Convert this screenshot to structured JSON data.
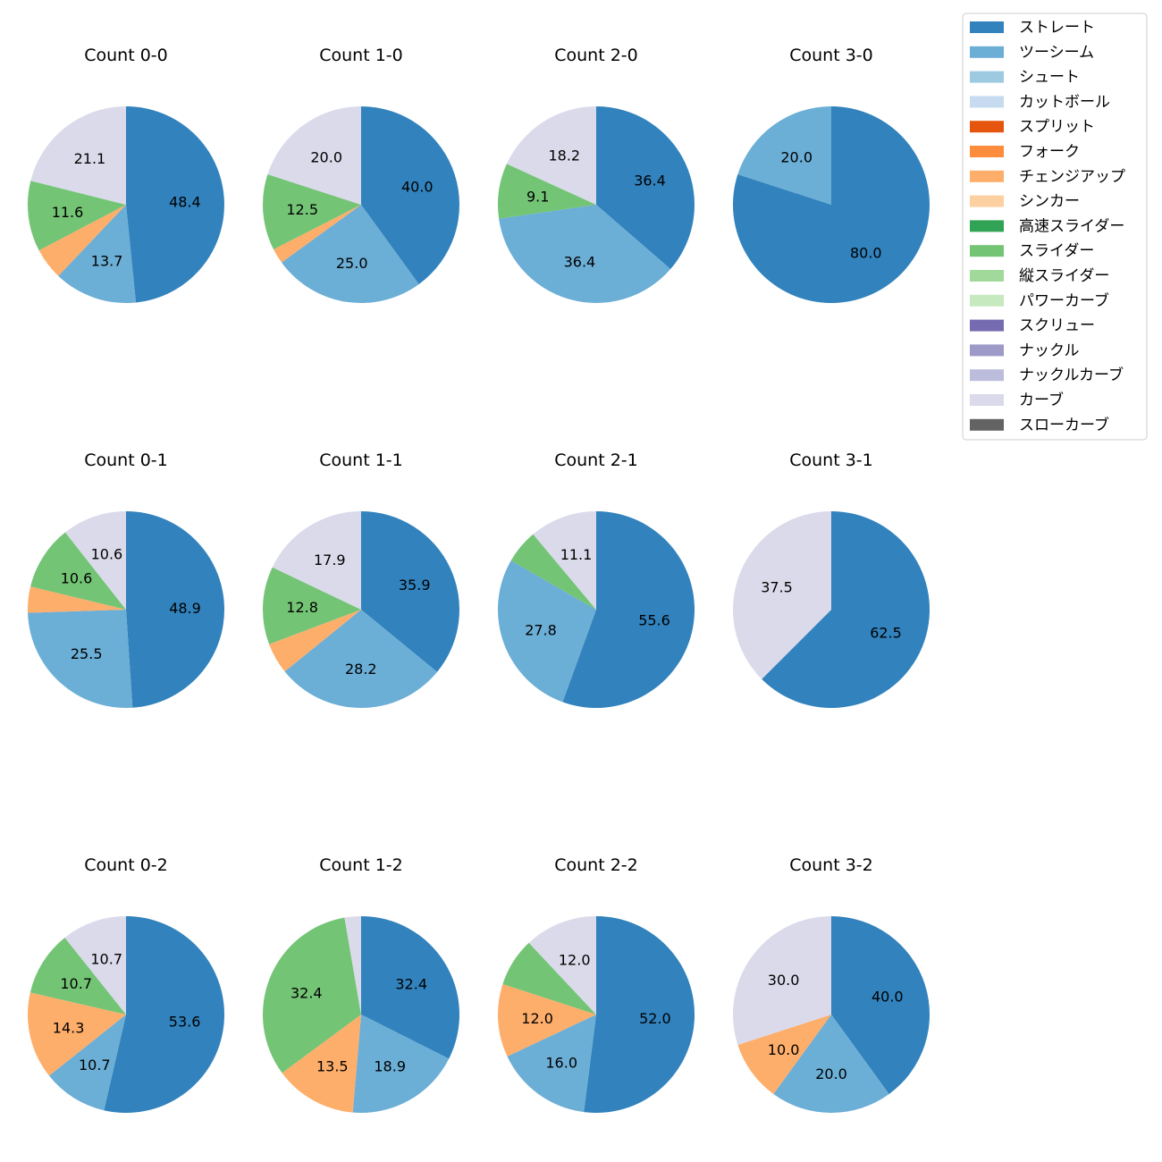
{
  "legend": {
    "placement": "top-right",
    "items": [
      {
        "name": "ストレート",
        "color": "#3182bd"
      },
      {
        "name": "ツーシーム",
        "color": "#6baed6"
      },
      {
        "name": "シュート",
        "color": "#9ecae1"
      },
      {
        "name": "カットボール",
        "color": "#c6dbef"
      },
      {
        "name": "スプリット",
        "color": "#e6550d"
      },
      {
        "name": "フォーク",
        "color": "#fd8d3c"
      },
      {
        "name": "チェンジアップ",
        "color": "#fdae6b"
      },
      {
        "name": "シンカー",
        "color": "#fdd0a2"
      },
      {
        "name": "高速スライダー",
        "color": "#31a354"
      },
      {
        "name": "スライダー",
        "color": "#74c476"
      },
      {
        "name": "縦スライダー",
        "color": "#a1d99b"
      },
      {
        "name": "パワーカーブ",
        "color": "#c7e9c0"
      },
      {
        "name": "スクリュー",
        "color": "#756bb1"
      },
      {
        "name": "ナックル",
        "color": "#9e9ac8"
      },
      {
        "name": "ナックルカーブ",
        "color": "#bcbddc"
      },
      {
        "name": "カーブ",
        "color": "#dadaeb"
      },
      {
        "name": "スローカーブ",
        "color": "#636363"
      }
    ]
  },
  "chart_data": [
    {
      "type": "pie",
      "title": "Count 0-0",
      "slices": [
        {
          "category": "ストレート",
          "value": 48.4,
          "label": "48.4"
        },
        {
          "category": "ツーシーム",
          "value": 13.7,
          "label": "13.7"
        },
        {
          "category": "チェンジアップ",
          "value": 5.2,
          "label": ""
        },
        {
          "category": "スライダー",
          "value": 11.6,
          "label": "11.6"
        },
        {
          "category": "カーブ",
          "value": 21.1,
          "label": "21.1"
        }
      ]
    },
    {
      "type": "pie",
      "title": "Count 1-0",
      "slices": [
        {
          "category": "ストレート",
          "value": 40.0,
          "label": "40.0"
        },
        {
          "category": "ツーシーム",
          "value": 25.0,
          "label": "25.0"
        },
        {
          "category": "チェンジアップ",
          "value": 2.5,
          "label": ""
        },
        {
          "category": "スライダー",
          "value": 12.5,
          "label": "12.5"
        },
        {
          "category": "カーブ",
          "value": 20.0,
          "label": "20.0"
        }
      ]
    },
    {
      "type": "pie",
      "title": "Count 2-0",
      "slices": [
        {
          "category": "ストレート",
          "value": 36.4,
          "label": "36.4"
        },
        {
          "category": "ツーシーム",
          "value": 36.4,
          "label": "36.4"
        },
        {
          "category": "スライダー",
          "value": 9.1,
          "label": "9.1"
        },
        {
          "category": "カーブ",
          "value": 18.2,
          "label": "18.2"
        }
      ]
    },
    {
      "type": "pie",
      "title": "Count 3-0",
      "slices": [
        {
          "category": "ストレート",
          "value": 80.0,
          "label": "80.0"
        },
        {
          "category": "ツーシーム",
          "value": 20.0,
          "label": "20.0"
        }
      ]
    },
    {
      "type": "pie",
      "title": "Count 0-1",
      "slices": [
        {
          "category": "ストレート",
          "value": 48.9,
          "label": "48.9"
        },
        {
          "category": "ツーシーム",
          "value": 25.5,
          "label": "25.5"
        },
        {
          "category": "チェンジアップ",
          "value": 4.3,
          "label": ""
        },
        {
          "category": "スライダー",
          "value": 10.6,
          "label": "10.6"
        },
        {
          "category": "カーブ",
          "value": 10.6,
          "label": "10.6"
        }
      ]
    },
    {
      "type": "pie",
      "title": "Count 1-1",
      "slices": [
        {
          "category": "ストレート",
          "value": 35.9,
          "label": "35.9"
        },
        {
          "category": "ツーシーム",
          "value": 28.2,
          "label": "28.2"
        },
        {
          "category": "チェンジアップ",
          "value": 5.1,
          "label": ""
        },
        {
          "category": "スライダー",
          "value": 12.8,
          "label": "12.8"
        },
        {
          "category": "カーブ",
          "value": 17.9,
          "label": "17.9"
        }
      ]
    },
    {
      "type": "pie",
      "title": "Count 2-1",
      "slices": [
        {
          "category": "ストレート",
          "value": 55.6,
          "label": "55.6"
        },
        {
          "category": "ツーシーム",
          "value": 27.8,
          "label": "27.8"
        },
        {
          "category": "スライダー",
          "value": 5.6,
          "label": ""
        },
        {
          "category": "カーブ",
          "value": 11.1,
          "label": "11.1"
        }
      ]
    },
    {
      "type": "pie",
      "title": "Count 3-1",
      "slices": [
        {
          "category": "ストレート",
          "value": 62.5,
          "label": "62.5"
        },
        {
          "category": "カーブ",
          "value": 37.5,
          "label": "37.5"
        }
      ]
    },
    {
      "type": "pie",
      "title": "Count 0-2",
      "slices": [
        {
          "category": "ストレート",
          "value": 53.6,
          "label": "53.6"
        },
        {
          "category": "ツーシーム",
          "value": 10.7,
          "label": "10.7"
        },
        {
          "category": "チェンジアップ",
          "value": 14.3,
          "label": "14.3"
        },
        {
          "category": "スライダー",
          "value": 10.7,
          "label": "10.7"
        },
        {
          "category": "カーブ",
          "value": 10.7,
          "label": "10.7"
        }
      ]
    },
    {
      "type": "pie",
      "title": "Count 1-2",
      "slices": [
        {
          "category": "ストレート",
          "value": 32.4,
          "label": "32.4"
        },
        {
          "category": "ツーシーム",
          "value": 18.9,
          "label": "18.9"
        },
        {
          "category": "チェンジアップ",
          "value": 13.5,
          "label": "13.5"
        },
        {
          "category": "スライダー",
          "value": 32.4,
          "label": "32.4"
        },
        {
          "category": "カーブ",
          "value": 2.7,
          "label": ""
        }
      ]
    },
    {
      "type": "pie",
      "title": "Count 2-2",
      "slices": [
        {
          "category": "ストレート",
          "value": 52.0,
          "label": "52.0"
        },
        {
          "category": "ツーシーム",
          "value": 16.0,
          "label": "16.0"
        },
        {
          "category": "チェンジアップ",
          "value": 12.0,
          "label": "12.0"
        },
        {
          "category": "スライダー",
          "value": 8.0,
          "label": ""
        },
        {
          "category": "カーブ",
          "value": 12.0,
          "label": "12.0"
        }
      ]
    },
    {
      "type": "pie",
      "title": "Count 3-2",
      "slices": [
        {
          "category": "ストレート",
          "value": 40.0,
          "label": "40.0"
        },
        {
          "category": "ツーシーム",
          "value": 20.0,
          "label": "20.0"
        },
        {
          "category": "チェンジアップ",
          "value": 10.0,
          "label": "10.0"
        },
        {
          "category": "カーブ",
          "value": 30.0,
          "label": "30.0"
        }
      ]
    }
  ]
}
